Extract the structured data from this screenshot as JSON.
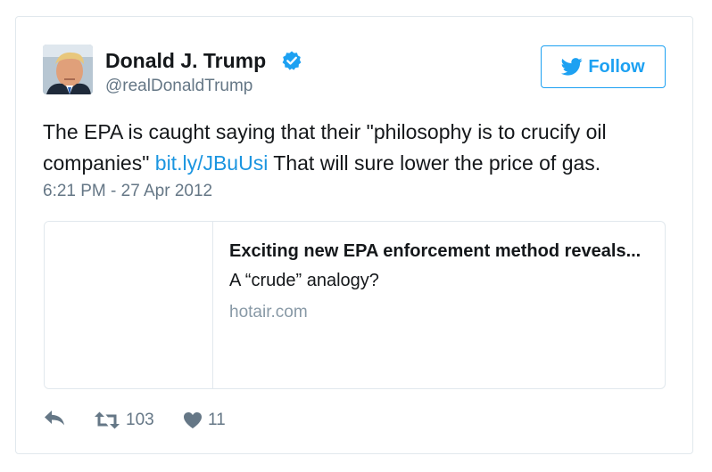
{
  "user": {
    "display_name": "Donald J. Trump",
    "screen_name": "@realDonaldTrump",
    "verified": true
  },
  "follow_button": {
    "label": "Follow"
  },
  "tweet": {
    "text_before_link": "The EPA is caught saying that their \"philosophy is to crucify oil companies\" ",
    "link_text": "bit.ly/JBuUsi",
    "text_after_link": " That will sure lower the price of gas.",
    "timestamp": "6:21 PM - 27 Apr 2012"
  },
  "link_card": {
    "title": "Exciting new EPA enforcement method reveals...",
    "description": "A “crude” analogy?",
    "domain": "hotair.com"
  },
  "actions": {
    "retweet_count": "103",
    "like_count": "11"
  },
  "colors": {
    "accent": "#1da1f2",
    "link": "#1b95e0",
    "secondary_text": "#657786",
    "border": "#e1e8ed"
  },
  "icons": {
    "avatar": "user-avatar",
    "verified": "verified-badge-icon",
    "follow": "twitter-bird-icon",
    "reply": "reply-icon",
    "retweet": "retweet-icon",
    "like": "heart-icon"
  }
}
